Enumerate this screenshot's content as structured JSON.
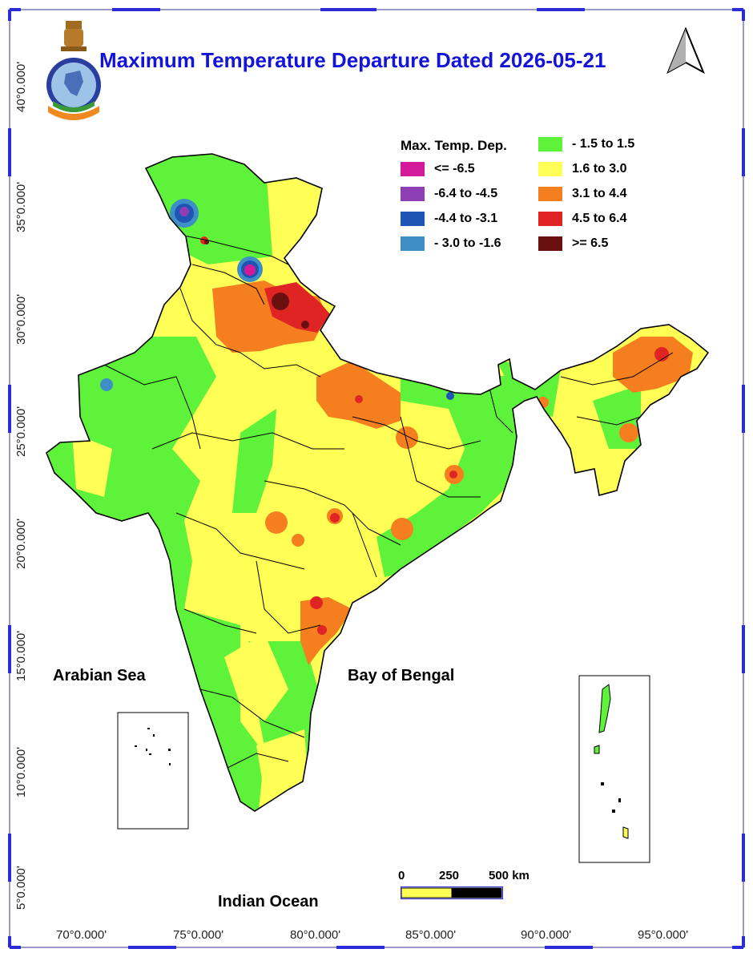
{
  "title": "Maximum Temperature Departure Dated 2026-05-21",
  "legend": {
    "title": "Max. Temp. Dep.",
    "items": [
      {
        "label": "<= -6.5",
        "color": "#d21a9a"
      },
      {
        "label": "-6.4 to -4.5",
        "color": "#8e3fb5"
      },
      {
        "label": "-4.4 to -3.1",
        "color": "#1c55b4"
      },
      {
        "label": "- 3.0 to -1.6",
        "color": "#3f8fc6"
      },
      {
        "label": "- 1.5 to 1.5",
        "color": "#5ff23a"
      },
      {
        "label": "1.6 to  3.0",
        "color": "#ffff55"
      },
      {
        "label": "3.1 to 4.4",
        "color": "#f57f1e"
      },
      {
        "label": "4.5 to 6.4",
        "color": "#e02424"
      },
      {
        "label": ">= 6.5",
        "color": "#6b1010"
      }
    ]
  },
  "labels": {
    "arabian_sea": "Arabian Sea",
    "bay_of_bengal": "Bay of Bengal",
    "indian_ocean": "Indian Ocean"
  },
  "y_ticks": [
    "40°0.000'",
    "35°0.000'",
    "30°0.000'",
    "25°0.000'",
    "20°0.000'",
    "15°0.000'",
    "10°0.000'",
    "5°0.000'"
  ],
  "x_ticks": [
    "70°0.000'",
    "75°0.000'",
    "80°0.000'",
    "85°0.000'",
    "90°0.000'",
    "95°0.000'"
  ],
  "scale_bar": {
    "l0": "0",
    "l1": "250",
    "l2": "500 km"
  },
  "colors": {
    "frame_blue": "#2b2bd8",
    "title_blue": "#1414d8"
  }
}
